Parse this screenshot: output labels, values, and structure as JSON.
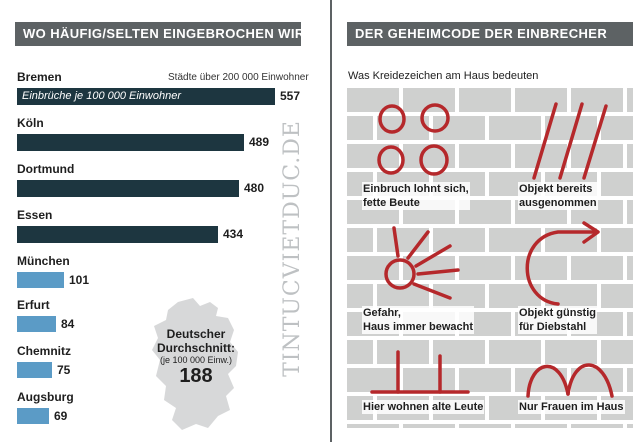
{
  "left_header": "WO HÄUFIG/SELTEN EINGEBROCHEN WIRD",
  "right_header": "DER GEHEIMCODE DER EINBRECHER",
  "right_subtitle": "Was Kreidezeichen am Haus bedeuten",
  "chart_note": "Städte über 200 000 Einwohner",
  "bar_caption": "Einbrüche je 100 000 Einwohner",
  "average": {
    "line1": "Deutscher",
    "line2": "Durchschnitt:",
    "line3": "(je 100 000 Einw.)",
    "value": "188"
  },
  "watermark": "TINTUCVIETDUC.DE",
  "colors": {
    "header": "#5d6264",
    "dark_bar": "#1d3640",
    "light_bar": "#5b9bc6",
    "chalk": "#b5282b",
    "wall": "#cfd0cf"
  },
  "chart_data": {
    "type": "bar",
    "orientation": "horizontal",
    "categories": [
      "Bremen",
      "Köln",
      "Dortmund",
      "Essen",
      "München",
      "Erfurt",
      "Chemnitz",
      "Augsburg"
    ],
    "values": [
      557,
      489,
      480,
      434,
      101,
      84,
      75,
      69
    ],
    "value_labels": [
      "557",
      "489",
      "480",
      "434",
      "101",
      "84",
      "75",
      "69"
    ],
    "title": "WO HÄUFIG/SELTEN EINGEBROCHEN WIRD",
    "xlabel": "Einbrüche je 100 000 Einwohner",
    "reference_value": 188,
    "xlim": [
      0,
      557
    ]
  },
  "symbols": [
    {
      "label_1": "Einbruch lohnt sich,",
      "label_2": "fette Beute",
      "icon": "four-circles-icon"
    },
    {
      "label_1": "Objekt bereits",
      "label_2": "ausgenommen",
      "icon": "three-slashes-icon"
    },
    {
      "label_1": "Gefahr,",
      "label_2": "Haus immer bewacht",
      "icon": "sun-icon"
    },
    {
      "label_1": "Objekt günstig",
      "label_2": "für Diebstahl",
      "icon": "curved-arrow-icon"
    },
    {
      "label_1": "Hier wohnen alte Leute",
      "label_2": "",
      "icon": "two-crosses-icon"
    },
    {
      "label_1": "Nur Frauen im Haus",
      "label_2": "",
      "icon": "m-arches-icon"
    }
  ]
}
